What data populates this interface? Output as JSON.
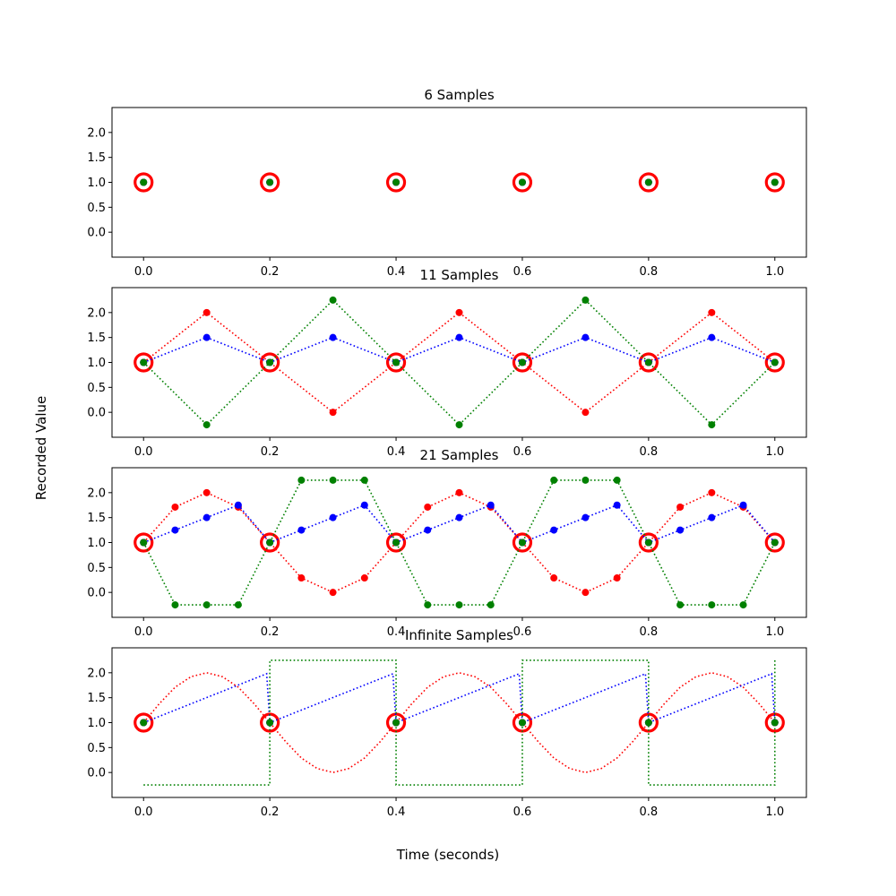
{
  "figure": {
    "xlabel": "Time (seconds)",
    "ylabel": "Recorded Value"
  },
  "colors": {
    "red": "#ff0000",
    "blue": "#0000ff",
    "green": "#008000",
    "frame": "#000000",
    "background": "#ffffff"
  },
  "chart_data": [
    {
      "type": "scatter",
      "title": "6 Samples",
      "xlim": [
        -0.05,
        1.05
      ],
      "ylim": [
        -0.5,
        2.5
      ],
      "xticks": [
        0.0,
        0.2,
        0.4,
        0.6,
        0.8,
        1.0
      ],
      "xtick_labels": [
        "0.0",
        "0.2",
        "0.4",
        "0.6",
        "0.8",
        "1.0"
      ],
      "yticks": [
        0.0,
        0.5,
        1.0,
        1.5,
        2.0
      ],
      "ytick_labels": [
        "0.0",
        "0.5",
        "1.0",
        "1.5",
        "2.0"
      ],
      "grid": false,
      "circled_samples": {
        "x": [
          0,
          0.2,
          0.4,
          0.6,
          0.8,
          1.0
        ],
        "y": [
          1,
          1,
          1,
          1,
          1,
          1
        ]
      },
      "series": [
        {
          "color": "red",
          "style": "dots",
          "x": [
            0,
            0.2,
            0.4,
            0.6,
            0.8,
            1.0
          ],
          "y": [
            1,
            1,
            1,
            1,
            1,
            1
          ]
        },
        {
          "color": "blue",
          "style": "dots",
          "x": [
            0,
            0.2,
            0.4,
            0.6,
            0.8,
            1.0
          ],
          "y": [
            1,
            1,
            1,
            1,
            1,
            1
          ]
        },
        {
          "color": "green",
          "style": "dots",
          "x": [
            0,
            0.2,
            0.4,
            0.6,
            0.8,
            1.0
          ],
          "y": [
            1,
            1,
            1,
            1,
            1,
            1
          ]
        }
      ]
    },
    {
      "type": "line",
      "title": "11 Samples",
      "xlim": [
        -0.05,
        1.05
      ],
      "ylim": [
        -0.5,
        2.5
      ],
      "xticks": [
        0.0,
        0.2,
        0.4,
        0.6,
        0.8,
        1.0
      ],
      "xtick_labels": [
        "0.0",
        "0.2",
        "0.4",
        "0.6",
        "0.8",
        "1.0"
      ],
      "yticks": [
        0.0,
        0.5,
        1.0,
        1.5,
        2.0
      ],
      "ytick_labels": [
        "0.0",
        "0.5",
        "1.0",
        "1.5",
        "2.0"
      ],
      "grid": false,
      "circled_samples": {
        "x": [
          0,
          0.2,
          0.4,
          0.6,
          0.8,
          1.0
        ],
        "y": [
          1,
          1,
          1,
          1,
          1,
          1
        ]
      },
      "series": [
        {
          "color": "red",
          "style": "dotted-markers",
          "x": [
            0,
            0.1,
            0.2,
            0.3,
            0.4,
            0.5,
            0.6,
            0.7,
            0.8,
            0.9,
            1.0
          ],
          "y": [
            1,
            2,
            1,
            0,
            1,
            2,
            1,
            0,
            1,
            2,
            1
          ]
        },
        {
          "color": "blue",
          "style": "dotted-markers",
          "x": [
            0,
            0.1,
            0.2,
            0.3,
            0.4,
            0.5,
            0.6,
            0.7,
            0.8,
            0.9,
            1.0
          ],
          "y": [
            1,
            1.5,
            1,
            1.5,
            1,
            1.5,
            1,
            1.5,
            1,
            1.5,
            1
          ]
        },
        {
          "color": "green",
          "style": "dotted-markers",
          "x": [
            0,
            0.1,
            0.2,
            0.3,
            0.4,
            0.5,
            0.6,
            0.7,
            0.8,
            0.9,
            1.0
          ],
          "y": [
            1,
            -0.25,
            1,
            2.25,
            1,
            -0.25,
            1,
            2.25,
            1,
            -0.25,
            1
          ]
        }
      ]
    },
    {
      "type": "line",
      "title": "21 Samples",
      "xlim": [
        -0.05,
        1.05
      ],
      "ylim": [
        -0.5,
        2.5
      ],
      "xticks": [
        0.0,
        0.2,
        0.4,
        0.6,
        0.8,
        1.0
      ],
      "xtick_labels": [
        "0.0",
        "0.2",
        "0.4",
        "0.6",
        "0.8",
        "1.0"
      ],
      "yticks": [
        0.0,
        0.5,
        1.0,
        1.5,
        2.0
      ],
      "ytick_labels": [
        "0.0",
        "0.5",
        "1.0",
        "1.5",
        "2.0"
      ],
      "grid": false,
      "circled_samples": {
        "x": [
          0,
          0.2,
          0.4,
          0.6,
          0.8,
          1.0
        ],
        "y": [
          1,
          1,
          1,
          1,
          1,
          1
        ]
      },
      "series": [
        {
          "color": "red",
          "style": "dotted-markers",
          "x": [
            0,
            0.05,
            0.1,
            0.15,
            0.2,
            0.25,
            0.3,
            0.35,
            0.4,
            0.45,
            0.5,
            0.55,
            0.6,
            0.65,
            0.7,
            0.75,
            0.8,
            0.85,
            0.9,
            0.95,
            1.0
          ],
          "y": [
            1,
            1.71,
            2,
            1.71,
            1,
            0.29,
            0,
            0.29,
            1,
            1.71,
            2,
            1.71,
            1,
            0.29,
            0,
            0.29,
            1,
            1.71,
            2,
            1.71,
            1
          ]
        },
        {
          "color": "blue",
          "style": "dotted-markers",
          "x": [
            0,
            0.05,
            0.1,
            0.15,
            0.2,
            0.25,
            0.3,
            0.35,
            0.4,
            0.45,
            0.5,
            0.55,
            0.6,
            0.65,
            0.7,
            0.75,
            0.8,
            0.85,
            0.9,
            0.95,
            1.0
          ],
          "y": [
            1,
            1.25,
            1.5,
            1.75,
            1,
            1.25,
            1.5,
            1.75,
            1,
            1.25,
            1.5,
            1.75,
            1,
            1.25,
            1.5,
            1.75,
            1,
            1.25,
            1.5,
            1.75,
            1
          ]
        },
        {
          "color": "green",
          "style": "dotted-markers",
          "x": [
            0,
            0.05,
            0.1,
            0.15,
            0.2,
            0.25,
            0.3,
            0.35,
            0.4,
            0.45,
            0.5,
            0.55,
            0.6,
            0.65,
            0.7,
            0.75,
            0.8,
            0.85,
            0.9,
            0.95,
            1.0
          ],
          "y": [
            1,
            -0.25,
            -0.25,
            -0.25,
            1,
            2.25,
            2.25,
            2.25,
            1,
            -0.25,
            -0.25,
            -0.25,
            1,
            2.25,
            2.25,
            2.25,
            1,
            -0.25,
            -0.25,
            -0.25,
            1
          ]
        }
      ]
    },
    {
      "type": "line",
      "title": "Infinite Samples",
      "xlim": [
        -0.05,
        1.05
      ],
      "ylim": [
        -0.5,
        2.5
      ],
      "xticks": [
        0.0,
        0.2,
        0.4,
        0.6,
        0.8,
        1.0
      ],
      "xtick_labels": [
        "0.0",
        "0.2",
        "0.4",
        "0.6",
        "0.8",
        "1.0"
      ],
      "yticks": [
        0.0,
        0.5,
        1.0,
        1.5,
        2.0
      ],
      "ytick_labels": [
        "0.0",
        "0.5",
        "1.0",
        "1.5",
        "2.0"
      ],
      "grid": false,
      "circled_samples": {
        "x": [
          0,
          0.2,
          0.4,
          0.6,
          0.8,
          1.0
        ],
        "y": [
          1,
          1,
          1,
          1,
          1,
          1
        ]
      },
      "series": [
        {
          "color": "red",
          "style": "dotted-curve",
          "shape": "sine",
          "x": [
            0,
            0.025,
            0.05,
            0.075,
            0.1,
            0.125,
            0.15,
            0.175,
            0.2,
            0.225,
            0.25,
            0.275,
            0.3,
            0.325,
            0.35,
            0.375,
            0.4,
            0.425,
            0.45,
            0.475,
            0.5,
            0.525,
            0.55,
            0.575,
            0.6,
            0.625,
            0.65,
            0.675,
            0.7,
            0.725,
            0.75,
            0.775,
            0.8,
            0.825,
            0.85,
            0.875,
            0.9,
            0.925,
            0.95,
            0.975,
            1.0
          ],
          "y": [
            1,
            1.38,
            1.71,
            1.92,
            2,
            1.92,
            1.71,
            1.38,
            1,
            0.62,
            0.29,
            0.08,
            0,
            0.08,
            0.29,
            0.62,
            1,
            1.38,
            1.71,
            1.92,
            2,
            1.92,
            1.71,
            1.38,
            1,
            0.62,
            0.29,
            0.08,
            0,
            0.08,
            0.29,
            0.62,
            1,
            1.38,
            1.71,
            1.92,
            2,
            1.92,
            1.71,
            1.38,
            1
          ]
        },
        {
          "color": "blue",
          "style": "dotted-curve",
          "shape": "sawtooth",
          "x": [
            0,
            0.195,
            0.195,
            0.2,
            0.395,
            0.395,
            0.4,
            0.595,
            0.595,
            0.6,
            0.795,
            0.795,
            0.8,
            0.995,
            0.995,
            1.0
          ],
          "y": [
            1,
            1.98,
            1.98,
            1,
            1.98,
            1.98,
            1,
            1.98,
            1.98,
            1,
            1.98,
            1.98,
            1,
            1.98,
            1.98,
            1
          ]
        },
        {
          "color": "green",
          "style": "dotted-curve",
          "shape": "square",
          "x": [
            0,
            0.2,
            0.2,
            0.4,
            0.4,
            0.6,
            0.6,
            0.8,
            0.8,
            1.0,
            1.0
          ],
          "y": [
            -0.25,
            -0.25,
            2.25,
            2.25,
            -0.25,
            -0.25,
            2.25,
            2.25,
            -0.25,
            -0.25,
            2.25
          ]
        }
      ]
    }
  ]
}
